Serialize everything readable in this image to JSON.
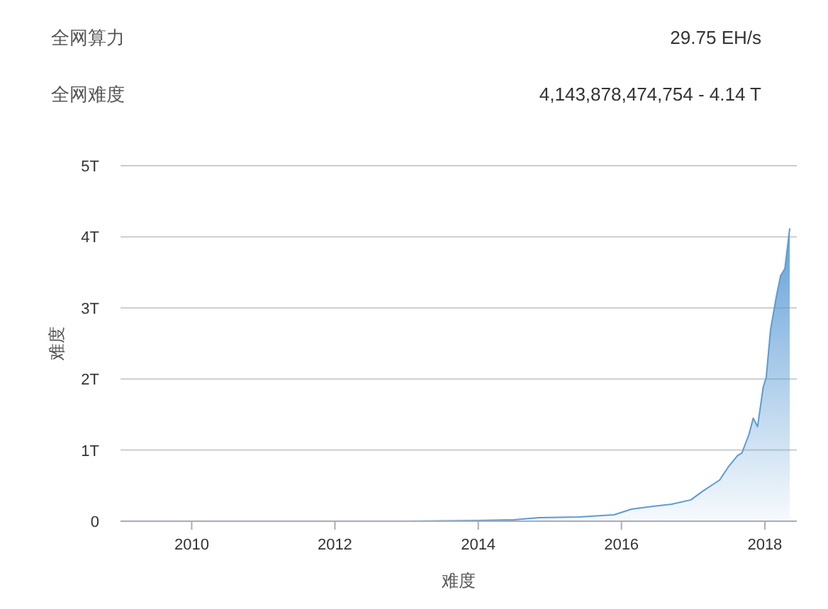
{
  "chart_data": {
    "type": "area",
    "xlabel": "难度",
    "ylabel": "难度",
    "annotations": [
      "全网算力",
      "29.75 EH/s",
      "全网难度",
      "4,143,878,474,754 - 4.14 T"
    ],
    "xlim": [
      "2009-01-03",
      "2018-06-13"
    ],
    "xticks": [
      "2010",
      "2012",
      "2014",
      "2016",
      "2018"
    ],
    "ylim": [
      0,
      5
    ],
    "yticks": [
      0,
      {
        "value": 1,
        "label": "1T"
      },
      {
        "value": 2,
        "label": "2T"
      },
      {
        "value": 3,
        "label": "3T"
      },
      {
        "value": 4,
        "label": "4T"
      },
      {
        "value": 5,
        "label": "5T"
      }
    ],
    "grid": "y",
    "series": [
      {
        "color": "#5b9bd5",
        "x": [
          "2009-01-03",
          "2011-01-01",
          "2013-01-01",
          "2014-01-01",
          "2014-07-01",
          "2014-11-06",
          "2015-06-01",
          "2015-11-24",
          "2016-02-21",
          "2016-06-10",
          "2016-09-13",
          "2016-12-20",
          "2017-02-17",
          "2017-05-16",
          "2017-06-28",
          "2017-08-14",
          "2017-09-06",
          "2017-10-12",
          "2017-11-03",
          "2017-11-25",
          "2017-12-24",
          "2018-01-08",
          "2018-01-30",
          "2018-02-28",
          "2018-03-22",
          "2018-04-13",
          "2018-05-08"
        ],
        "values": [
          0,
          0,
          0,
          0.01,
          0.02,
          0.05,
          0.06,
          0.09,
          0.17,
          0.21,
          0.24,
          0.3,
          0.42,
          0.58,
          0.76,
          0.92,
          0.96,
          1.22,
          1.45,
          1.33,
          1.89,
          2.02,
          2.69,
          3.15,
          3.45,
          3.55,
          4.12
        ]
      }
    ]
  }
}
